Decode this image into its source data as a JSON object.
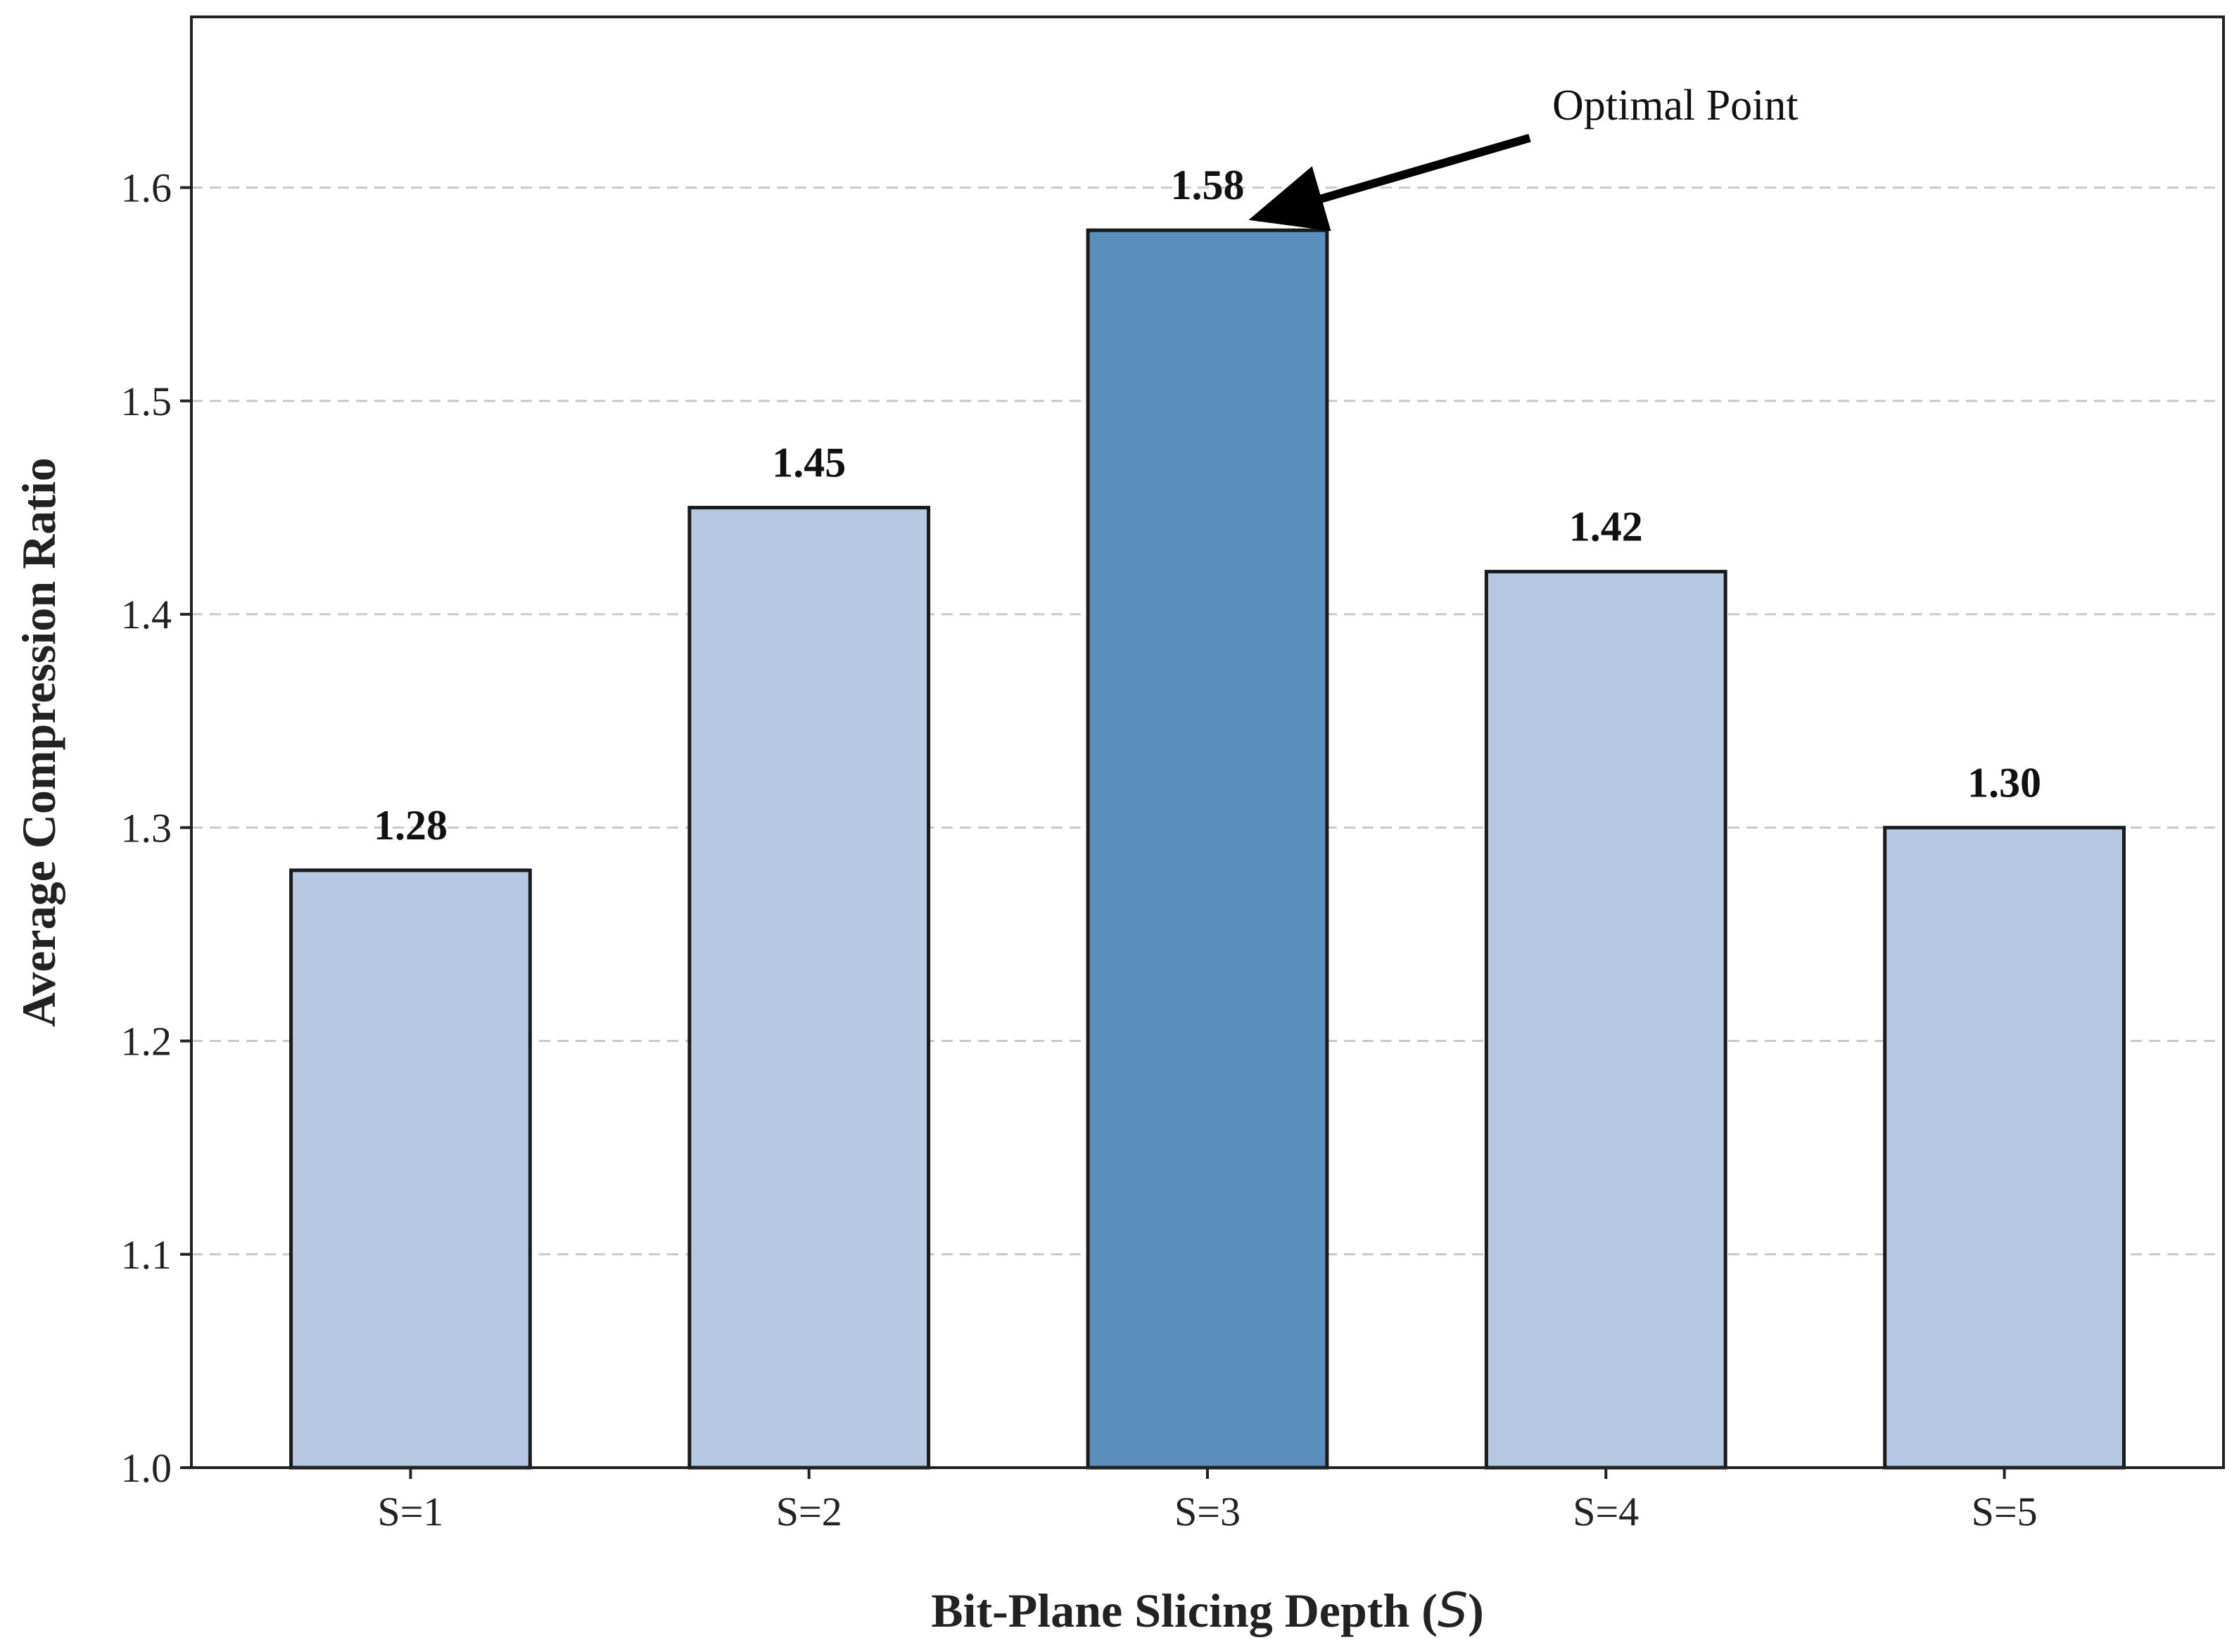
{
  "chart_data": {
    "type": "bar",
    "title": "",
    "xlabel": "Bit-Plane Slicing Depth (",
    "xlabel_var": "S",
    "xlabel_suffix": ")",
    "ylabel": "Average Compression Ratio",
    "categories": [
      "S=1",
      "S=2",
      "S=3",
      "S=4",
      "S=5"
    ],
    "values": [
      1.28,
      1.45,
      1.58,
      1.42,
      1.3
    ],
    "value_labels": [
      "1.28",
      "1.45",
      "1.58",
      "1.42",
      "1.30"
    ],
    "ylim": [
      1.0,
      1.68
    ],
    "yticks": [
      1.0,
      1.1,
      1.2,
      1.3,
      1.4,
      1.5,
      1.6
    ],
    "ytick_labels": [
      "1.0",
      "1.1",
      "1.2",
      "1.3",
      "1.4",
      "1.5",
      "1.6"
    ],
    "grid": "horizontal dashed",
    "highlight_index": 2,
    "colors": {
      "bar": "#b7c9e2",
      "bar_highlight": "#5a8fbd",
      "edge": "#1a1a1a",
      "grid": "#c8c8c8"
    },
    "annotation": {
      "text": "Optimal Point",
      "target_index": 2
    }
  }
}
